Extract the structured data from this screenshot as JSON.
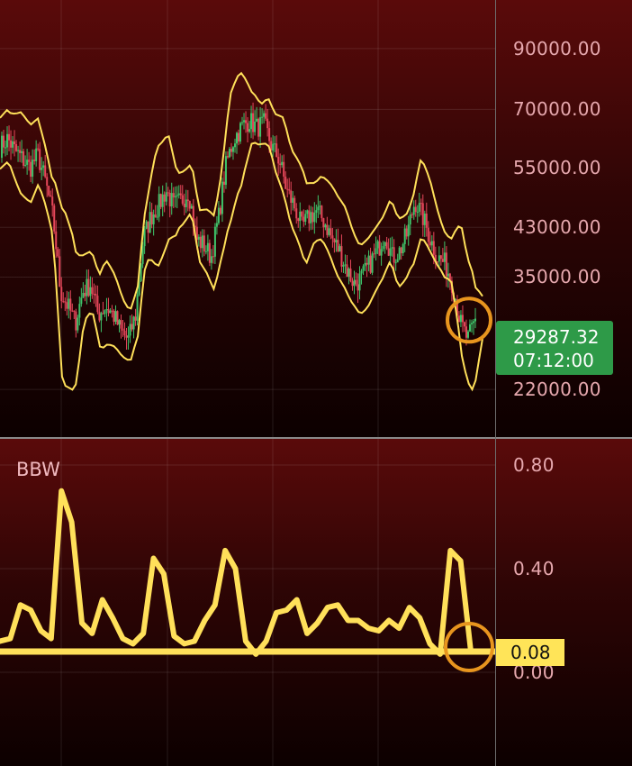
{
  "chart_data": [
    {
      "type": "candlestick",
      "indicator": "Bollinger Bands",
      "y_scale": "log",
      "ylim": [
        18000,
        110000
      ],
      "y_ticks": [
        "90000.00",
        "70000.00",
        "55000.00",
        "43000.00",
        "35000.00",
        "22000.00"
      ],
      "last_price": "29287.32",
      "countdown": "07:12:00",
      "close_series": [
        60000,
        62000,
        59000,
        57000,
        55000,
        58000,
        52000,
        45000,
        33000,
        31000,
        29000,
        33000,
        34000,
        30000,
        31000,
        30000,
        28000,
        27000,
        30000,
        41000,
        45000,
        47000,
        50000,
        47000,
        48000,
        50000,
        41000,
        40000,
        38000,
        45000,
        56000,
        62000,
        65000,
        67000,
        65000,
        66000,
        60000,
        57000,
        50000,
        47000,
        43000,
        45000,
        46000,
        44000,
        41000,
        39000,
        36000,
        34000,
        35000,
        37000,
        39000,
        42000,
        38000,
        39000,
        42000,
        48000,
        45000,
        41000,
        38000,
        37000,
        34000,
        29000,
        27000,
        29287
      ]
    },
    {
      "type": "line",
      "title": "BBW",
      "ylim": [
        0,
        0.8
      ],
      "y_ticks": [
        "0.80",
        "0.40",
        "0.00"
      ],
      "current_value": "0.08",
      "threshold": 0.08,
      "values": [
        0.12,
        0.13,
        0.26,
        0.24,
        0.16,
        0.13,
        0.7,
        0.58,
        0.19,
        0.15,
        0.28,
        0.21,
        0.13,
        0.11,
        0.15,
        0.44,
        0.38,
        0.14,
        0.11,
        0.12,
        0.2,
        0.26,
        0.47,
        0.4,
        0.12,
        0.07,
        0.12,
        0.23,
        0.24,
        0.28,
        0.15,
        0.19,
        0.25,
        0.26,
        0.2,
        0.2,
        0.17,
        0.16,
        0.2,
        0.17,
        0.25,
        0.21,
        0.11,
        0.07,
        0.47,
        0.43,
        0.08
      ]
    }
  ],
  "bbw_panel": {
    "title": "BBW"
  },
  "colors": {
    "yellow": "#ffe05a",
    "orange": "#e8951e",
    "green": "#2e9a48",
    "red": "#e5475a",
    "candle_green": "#3ec46a"
  }
}
